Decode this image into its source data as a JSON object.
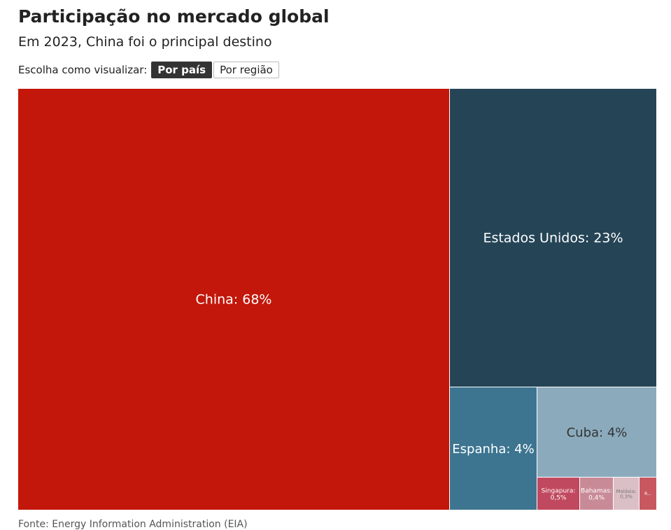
{
  "header": {
    "title": "Participação no mercado global",
    "subtitle": "Em 2023, China foi o principal destino"
  },
  "controls": {
    "label": "Escolha como visualizar:",
    "options": [
      "Por país",
      "Por região"
    ],
    "selected": "Por país"
  },
  "footer": {
    "source": "Fonte: Energy Information Administration (EIA)"
  },
  "chart_data": {
    "type": "treemap",
    "unit": "%",
    "items": [
      {
        "label": "China: 68%",
        "name": "China",
        "value": 68,
        "color": "#c2170a",
        "text_color": "#ffffff"
      },
      {
        "label": "Estados Unidos: 23%",
        "name": "Estados Unidos",
        "value": 23,
        "color": "#254557",
        "text_color": "#ffffff"
      },
      {
        "label": "Espanha: 4%",
        "name": "Espanha",
        "value": 4,
        "color": "#3d7590",
        "text_color": "#ffffff"
      },
      {
        "label": "Cuba: 4%",
        "name": "Cuba",
        "value": 4,
        "color": "#8babbd",
        "text_color": "#333333"
      },
      {
        "label": "Singapura: 0,5%",
        "name": "Singapura",
        "value": 0.5,
        "color": "#c1495f",
        "text_color": "#ffffff"
      },
      {
        "label": "Bahamas: 0,4%",
        "name": "Bahamas",
        "value": 0.4,
        "color": "#c98a97",
        "text_color": "#ffffff"
      },
      {
        "label": "Malásia: 0,3%",
        "name": "Malásia",
        "value": 0.3,
        "color": "#dbbfc6",
        "text_color": "#777777"
      },
      {
        "label": "R...",
        "name": "R...",
        "value": 0.2,
        "color": "#c85860",
        "text_color": "#ffffff"
      }
    ]
  }
}
